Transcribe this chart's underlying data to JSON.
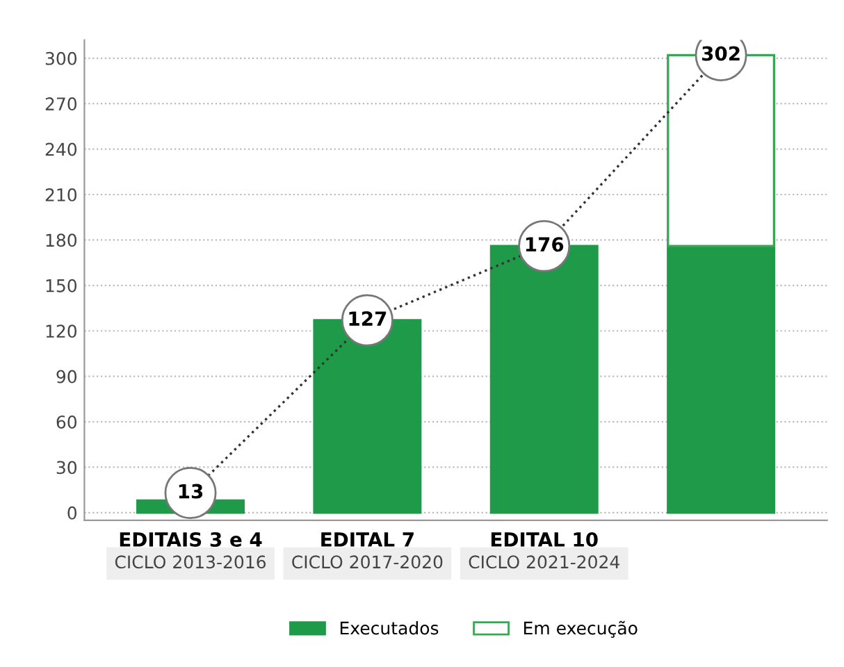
{
  "chart_data": {
    "type": "bar",
    "categories": [
      "EDITAIS 3 e 4",
      "EDITAL 7",
      "EDITAL 10",
      null
    ],
    "ylim": [
      -5,
      312
    ],
    "yticks": [
      0,
      30,
      60,
      90,
      120,
      150,
      180,
      210,
      240,
      270,
      300
    ],
    "grid": "y",
    "legend": "bottom",
    "stacked": true,
    "annotations": [
      "CICLO 2013-2016",
      "CICLO 2017-2020",
      "CICLO 2021-2024"
    ],
    "series": [
      {
        "name": "Executados",
        "color": "#1f9a48",
        "values": [
          8,
          127,
          176,
          176
        ]
      },
      {
        "name": "Em execução",
        "color": "#3aa655",
        "values": [
          null,
          null,
          null,
          126
        ]
      },
      {
        "type": "line",
        "color": "#333333",
        "line_style": "dotted",
        "marker": "circle",
        "data_labels": true,
        "values": [
          13,
          127,
          176,
          302
        ]
      }
    ]
  }
}
